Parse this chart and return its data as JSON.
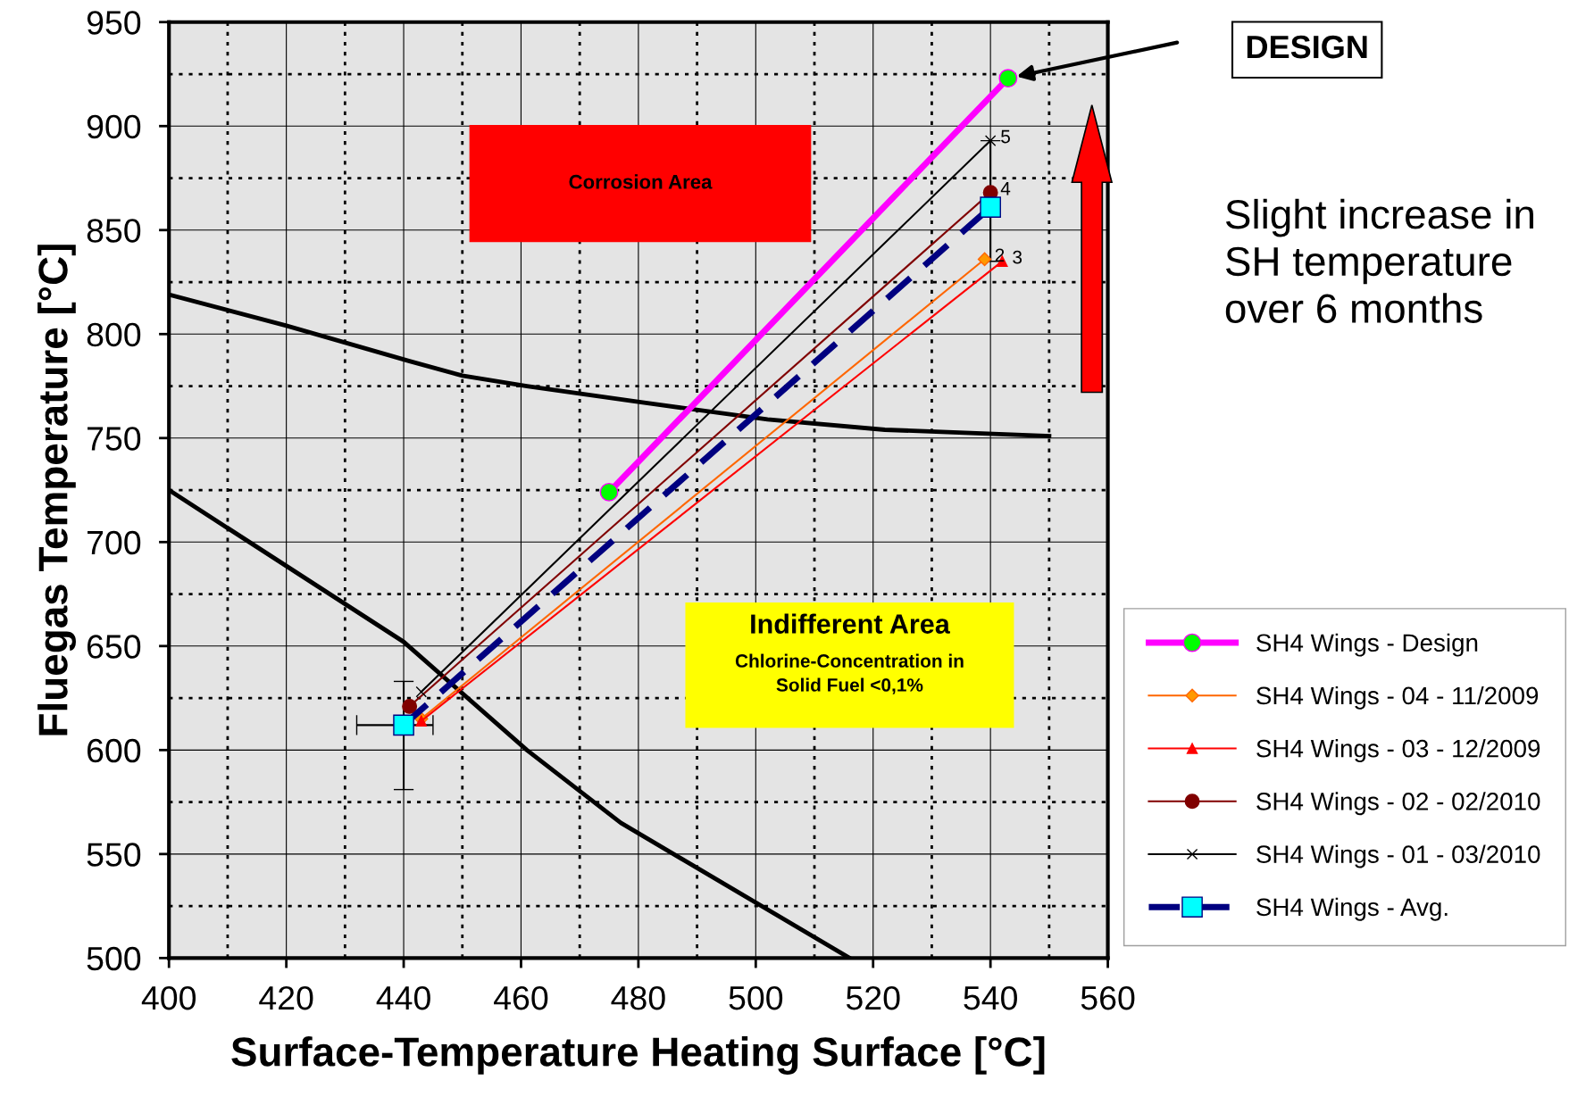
{
  "chart_data": {
    "type": "line",
    "xlabel": "Surface-Temperature Heating Surface [°C]",
    "ylabel": "Fluegas Temperature [°C]",
    "xlim": [
      400,
      560
    ],
    "xticks": [
      400,
      420,
      440,
      460,
      480,
      500,
      520,
      540,
      560
    ],
    "ylim": [
      500,
      950
    ],
    "yticks": [
      500,
      550,
      600,
      650,
      700,
      750,
      800,
      850,
      900,
      950
    ],
    "grid": true,
    "legend": "bottom right",
    "series": [
      {
        "name": "SH4 Wings - Design",
        "color": "#ff00ff",
        "marker": "circle",
        "line_style": "solid",
        "x": [
          475,
          543
        ],
        "values": [
          724,
          923
        ]
      },
      {
        "name": "SH4 Wings - 04 - 11/2009",
        "color": "#ff6600",
        "marker": "diamond",
        "line_style": "solid",
        "x": [
          443,
          539
        ],
        "values": [
          615,
          836
        ]
      },
      {
        "name": "SH4 Wings - 03 - 12/2009",
        "color": "#ff0000",
        "marker": "triangle",
        "line_style": "solid",
        "x": [
          443,
          542
        ],
        "values": [
          614,
          835
        ]
      },
      {
        "name": "SH4 Wings - 02 - 02/2010",
        "color": "#800000",
        "marker": "circle",
        "line_style": "solid",
        "x": [
          441,
          540
        ],
        "values": [
          621,
          868
        ]
      },
      {
        "name": "SH4 Wings - 01 - 03/2010",
        "color": "#000000",
        "marker": "cross",
        "line_style": "solid",
        "x": [
          443,
          540
        ],
        "values": [
          628,
          893
        ]
      },
      {
        "name": "SH4 Wings - Avg.",
        "color": "#000080",
        "marker": "square",
        "line_style": "dashed",
        "x": [
          440,
          540
        ],
        "values": [
          612,
          861
        ],
        "errors": [
          [
            581,
            633
          ],
          [
            835,
            893
          ]
        ],
        "xerrors": [
          [
            432,
            445
          ],
          null
        ]
      },
      {
        "color": "#000000",
        "marker": "none",
        "line_style": "solid",
        "x": [
          400,
          420,
          441,
          450,
          461,
          481,
          502,
          522,
          550
        ],
        "values": [
          819,
          804,
          787,
          780,
          775,
          767,
          759,
          754,
          751
        ]
      },
      {
        "color": "#000000",
        "marker": "none",
        "line_style": "solid",
        "x": [
          400,
          440,
          461,
          477,
          516
        ],
        "values": [
          725,
          652,
          600,
          565,
          500
        ]
      }
    ],
    "annotations": [
      "Corrosion Area",
      "Indifferent Area\nChlorine-Concentration in\nSolid Fuel <0,1%",
      {
        "text": "5",
        "x": 540,
        "y": 893
      },
      {
        "text": "4",
        "x": 540,
        "y": 868
      },
      {
        "text": "2",
        "x": 539,
        "y": 836
      },
      {
        "text": "3",
        "x": 542,
        "y": 835
      },
      "DESIGN",
      "Slight increase in\nSH temperature\nover 6 months"
    ]
  }
}
